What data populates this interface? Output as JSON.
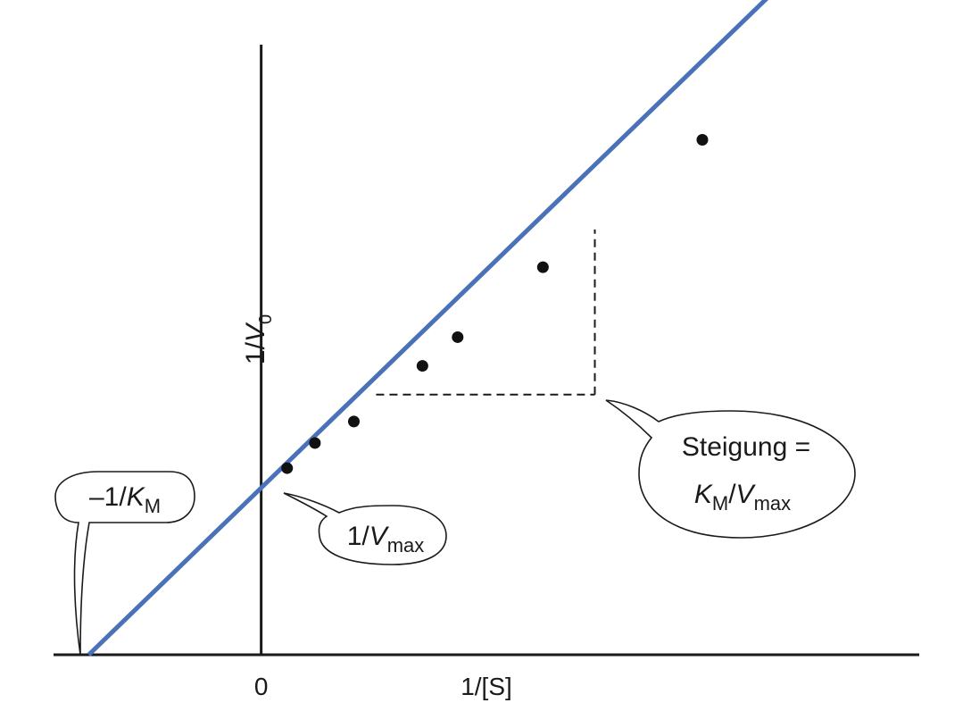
{
  "chart_data": {
    "type": "line",
    "title": "",
    "xlabel": "1/[S]",
    "ylabel_main": "1/V",
    "ylabel_sub": "0",
    "x_tick_zero": "0",
    "xlim": [
      -1.12,
      3.55
    ],
    "ylim": [
      0,
      3.4
    ],
    "grid": false,
    "fit_line": {
      "slope": 1.0,
      "intercept": 0.93,
      "x_start": -0.93,
      "x_end": 2.83
    },
    "points": [
      {
        "x": 0.14,
        "y": 1.04
      },
      {
        "x": 0.29,
        "y": 1.18
      },
      {
        "x": 0.5,
        "y": 1.3
      },
      {
        "x": 0.87,
        "y": 1.61
      },
      {
        "x": 1.06,
        "y": 1.77
      },
      {
        "x": 1.52,
        "y": 2.16
      },
      {
        "x": 2.38,
        "y": 2.87
      }
    ],
    "slope_triangle": {
      "x1": 0.62,
      "x2": 1.8,
      "y_base": 1.45,
      "y_top": 2.37
    },
    "callouts": {
      "km": {
        "prefix": "–1/",
        "main": "K",
        "sub": "M"
      },
      "vmax": {
        "prefix": "1/",
        "main": "V",
        "sub": "max"
      },
      "slope_line1": "Steigung =",
      "slope_line2": {
        "k": "K",
        "k_sub": "M",
        "sep": "/",
        "v": "V",
        "v_sub": "max"
      }
    },
    "colors": {
      "line": "#4a72b8",
      "points": "#111111",
      "axes": "#1a1a1a"
    }
  }
}
